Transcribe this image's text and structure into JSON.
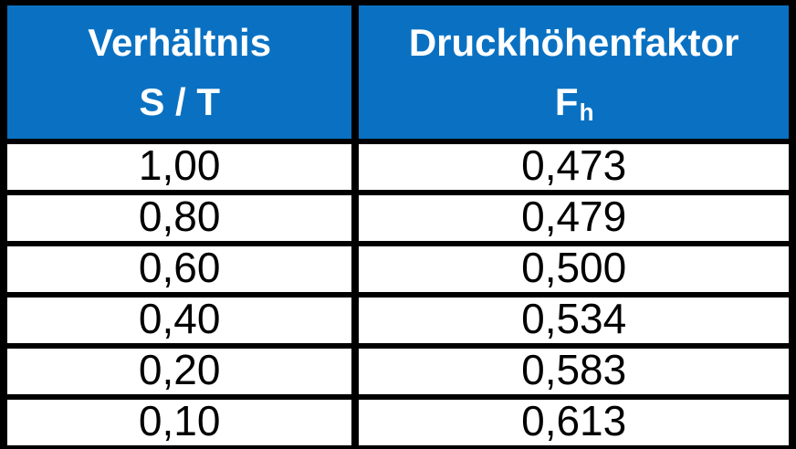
{
  "table": {
    "accent_color": "#0a71c2",
    "text_color_header": "#ffffff",
    "text_color_body": "#000000",
    "border_color": "#000000",
    "header": {
      "col1_line1": "Verhältnis",
      "col1_line2": "S / T",
      "col2_line1": "Druckhöhenfaktor",
      "col2_symbol": "F",
      "col2_subscript": "h"
    },
    "rows": [
      {
        "ratio": "1,00",
        "factor": "0,473"
      },
      {
        "ratio": "0,80",
        "factor": "0,479"
      },
      {
        "ratio": "0,60",
        "factor": "0,500"
      },
      {
        "ratio": "0,40",
        "factor": "0,534"
      },
      {
        "ratio": "0,20",
        "factor": "0,583"
      },
      {
        "ratio": "0,10",
        "factor": "0,613"
      }
    ]
  },
  "chart_data": {
    "type": "table",
    "title": "",
    "columns": [
      "Verhältnis S / T",
      "Druckhöhenfaktor Fh"
    ],
    "rows": [
      [
        "1,00",
        "0,473"
      ],
      [
        "0,80",
        "0,479"
      ],
      [
        "0,60",
        "0,500"
      ],
      [
        "0,40",
        "0,534"
      ],
      [
        "0,20",
        "0,583"
      ],
      [
        "0,10",
        "0,613"
      ]
    ],
    "numeric_series": [
      {
        "name": "S/T",
        "values": [
          1.0,
          0.8,
          0.6,
          0.4,
          0.2,
          0.1
        ]
      },
      {
        "name": "Fh",
        "values": [
          0.473,
          0.479,
          0.5,
          0.534,
          0.583,
          0.613
        ]
      }
    ]
  }
}
